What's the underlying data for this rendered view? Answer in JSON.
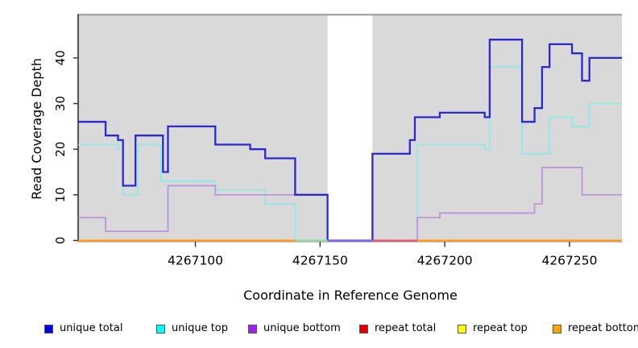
{
  "chart_data": {
    "type": "line",
    "subtype": "step-coverage",
    "title": "",
    "xlabel": "Coordinate in Reference Genome",
    "ylabel": "Read Coverage Depth",
    "xlim": [
      4267053,
      4267271
    ],
    "ylim": [
      0,
      49.6
    ],
    "x_ticks": [
      4267100,
      4267150,
      4267200,
      4267250
    ],
    "x_tick_labels": [
      "4267100",
      "4267150",
      "4267200",
      "4267250"
    ],
    "y_ticks": [
      0,
      10,
      20,
      30,
      40
    ],
    "y_tick_labels": [
      "0",
      "10",
      "20",
      "30",
      "40"
    ],
    "grid": false,
    "panel_color": "#d9d9d9",
    "panel_top_border_color": "#999999",
    "axis_color": "#2f2f2f",
    "gap_regions": [
      [
        4267153,
        4267171
      ]
    ],
    "series": [
      {
        "name": "unique top",
        "line_color": "#8ce9ea",
        "legend_color": "#00ffff",
        "width": 1.7,
        "points": [
          [
            4267053,
            21
          ],
          [
            4267069,
            20
          ],
          [
            4267071,
            10
          ],
          [
            4267077,
            21
          ],
          [
            4267086,
            13
          ],
          [
            4267108,
            11
          ],
          [
            4267128,
            8
          ],
          [
            4267140,
            0
          ],
          [
            4267189,
            21
          ],
          [
            4267216,
            20
          ],
          [
            4267218,
            38
          ],
          [
            4267231,
            19
          ],
          [
            4267242,
            27
          ],
          [
            4267251,
            25
          ],
          [
            4267258,
            30
          ],
          [
            4267271,
            30
          ]
        ]
      },
      {
        "name": "unique bottom",
        "line_color": "#bd8fdf",
        "legend_color": "#a020f0",
        "width": 1.7,
        "points": [
          [
            4267053,
            5
          ],
          [
            4267064,
            2
          ],
          [
            4267089,
            12
          ],
          [
            4267108,
            10
          ],
          [
            4267153,
            0
          ],
          [
            4267189,
            5
          ],
          [
            4267198,
            6
          ],
          [
            4267236,
            8
          ],
          [
            4267239,
            16
          ],
          [
            4267255,
            10
          ],
          [
            4267271,
            10
          ]
        ]
      },
      {
        "name": "unique total",
        "line_color": "#2a2ad2",
        "legend_color": "#0000e6",
        "width": 2.3,
        "points": [
          [
            4267053,
            26
          ],
          [
            4267064,
            23
          ],
          [
            4267069,
            22
          ],
          [
            4267071,
            12
          ],
          [
            4267076,
            23
          ],
          [
            4267087,
            15
          ],
          [
            4267089,
            25
          ],
          [
            4267108,
            21
          ],
          [
            4267122,
            20
          ],
          [
            4267128,
            18
          ],
          [
            4267140,
            10
          ],
          [
            4267153,
            0
          ],
          [
            4267171,
            19
          ],
          [
            4267186,
            22
          ],
          [
            4267188,
            27
          ],
          [
            4267198,
            28
          ],
          [
            4267216,
            27
          ],
          [
            4267218,
            44
          ],
          [
            4267231,
            26
          ],
          [
            4267236,
            29
          ],
          [
            4267239,
            38
          ],
          [
            4267242,
            43
          ],
          [
            4267251,
            41
          ],
          [
            4267255,
            35
          ],
          [
            4267258,
            40
          ],
          [
            4267271,
            40
          ]
        ]
      },
      {
        "name": "repeat total",
        "line_color": "#e35b78",
        "legend_color": "#e60000",
        "width": 2,
        "points": [
          [
            4267053,
            0
          ],
          [
            4267271,
            0
          ]
        ]
      },
      {
        "name": "repeat top",
        "line_color": "#f2e94e",
        "legend_color": "#ffff00",
        "width": 2,
        "points": [
          [
            4267053,
            0
          ],
          [
            4267271,
            0
          ]
        ]
      },
      {
        "name": "repeat bottom",
        "line_color": "#ff9b19",
        "legend_color": "#ffa500",
        "width": 2,
        "points": [
          [
            4267053,
            0
          ],
          [
            4267271,
            0
          ]
        ]
      }
    ],
    "baseline_visible_segments": [
      {
        "from": 4267053,
        "to": 4267140,
        "color": "#ff9b19",
        "shows": "repeat bottom"
      },
      {
        "from": 4267140,
        "to": 4267153,
        "color": "#93d6a4",
        "shows": "repeat top + unique top overlap"
      },
      {
        "from": 4267153,
        "to": 4267171,
        "color": "#7b68ee",
        "shows": "unique total + unique bottom overlap"
      },
      {
        "from": 4267171,
        "to": 4267189,
        "color": "#e35b78",
        "shows": "repeat total"
      },
      {
        "from": 4267189,
        "to": 4267271,
        "color": "#ff9b19",
        "shows": "repeat bottom"
      }
    ],
    "legend_position": "bottom"
  },
  "legend": {
    "items": [
      {
        "label": "unique total",
        "color": "#0000e6"
      },
      {
        "label": "unique top",
        "color": "#00ffff"
      },
      {
        "label": "unique bottom",
        "color": "#a020f0"
      },
      {
        "label": "repeat total",
        "color": "#e60000"
      },
      {
        "label": "repeat top",
        "color": "#ffff00"
      },
      {
        "label": "repeat bottom",
        "color": "#ffa500"
      }
    ]
  }
}
